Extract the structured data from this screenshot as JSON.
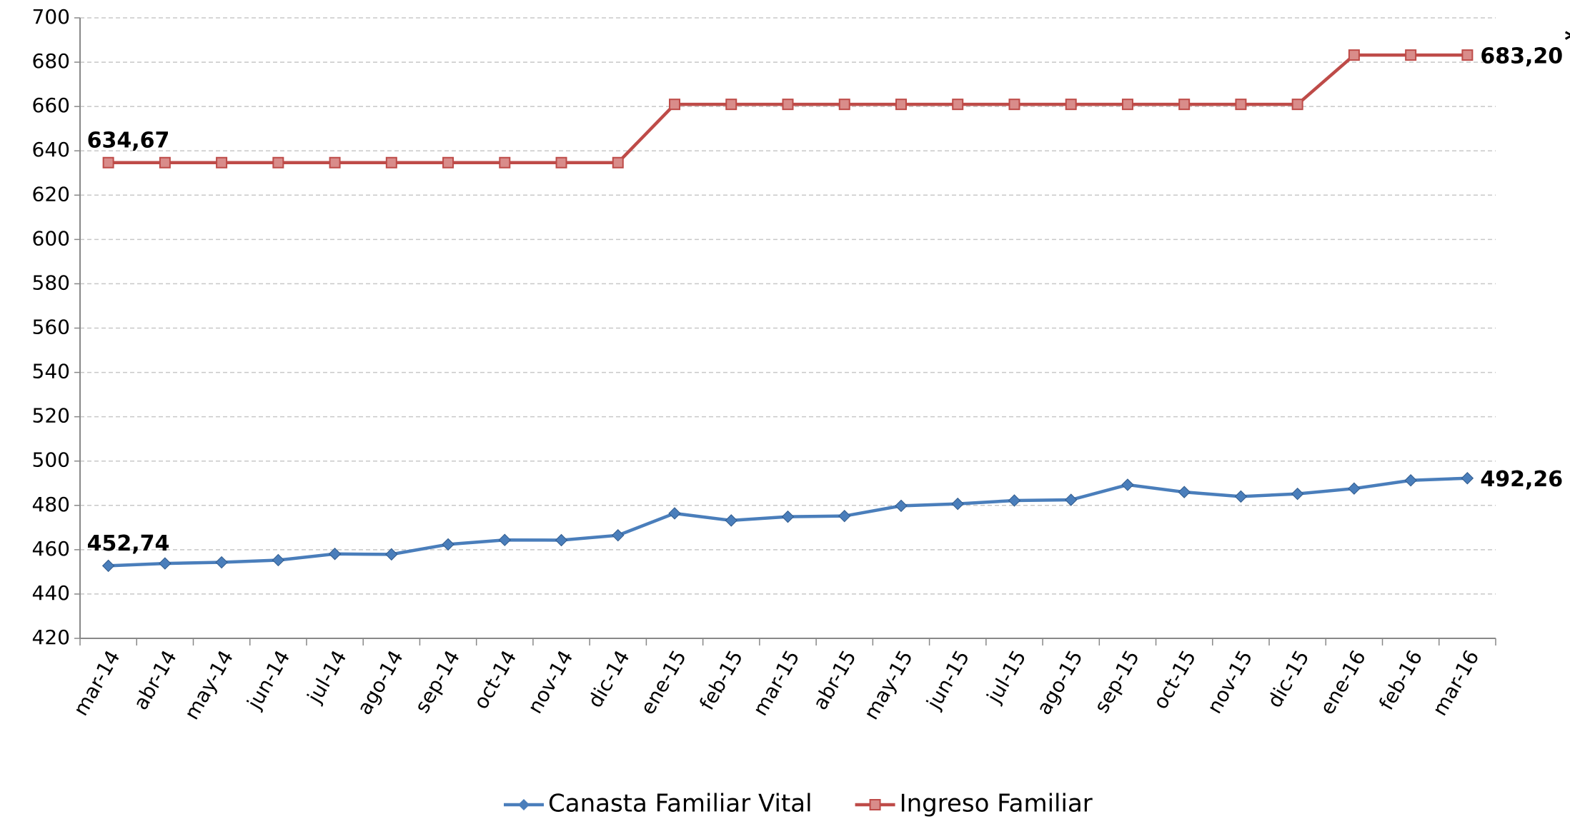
{
  "chart_data": {
    "type": "line",
    "categories": [
      "mar-14",
      "abr-14",
      "may-14",
      "jun-14",
      "jul-14",
      "ago-14",
      "sep-14",
      "oct-14",
      "nov-14",
      "dic-14",
      "ene-15",
      "feb-15",
      "mar-15",
      "abr-15",
      "may-15",
      "jun-15",
      "jul-15",
      "ago-15",
      "sep-15",
      "oct-15",
      "nov-15",
      "dic-15",
      "ene-16",
      "feb-16",
      "mar-16"
    ],
    "series": [
      {
        "name": "Canasta Familiar Vital",
        "color": "#4a7ebb",
        "marker": "diamond",
        "values": [
          452.74,
          453.8,
          454.3,
          455.3,
          458.1,
          457.9,
          462.4,
          464.4,
          464.3,
          466.5,
          476.4,
          473.2,
          474.9,
          475.2,
          479.8,
          480.7,
          482.2,
          482.5,
          489.3,
          486.0,
          484.0,
          485.2,
          487.6,
          491.3,
          492.26
        ],
        "value_labels": [
          "452,74",
          null,
          null,
          null,
          null,
          null,
          null,
          null,
          null,
          null,
          null,
          null,
          null,
          null,
          null,
          null,
          null,
          null,
          null,
          null,
          null,
          null,
          null,
          null,
          "492,26"
        ]
      },
      {
        "name": "Ingreso Familiar",
        "color": "#be4b48",
        "marker": "square",
        "values": [
          634.67,
          634.67,
          634.67,
          634.67,
          634.67,
          634.67,
          634.67,
          634.67,
          634.67,
          634.67,
          660.96,
          660.96,
          660.96,
          660.96,
          660.96,
          660.96,
          660.96,
          660.96,
          660.96,
          660.96,
          660.96,
          660.96,
          683.2,
          683.2,
          683.2
        ],
        "value_labels": [
          "634,67",
          null,
          null,
          null,
          null,
          null,
          null,
          null,
          null,
          null,
          null,
          null,
          null,
          null,
          null,
          null,
          null,
          null,
          null,
          null,
          null,
          null,
          null,
          null,
          "683,20"
        ]
      }
    ],
    "annotation": "*",
    "ylim": [
      420,
      700
    ],
    "yticks": [
      420,
      440,
      460,
      480,
      500,
      520,
      540,
      560,
      580,
      600,
      620,
      640,
      660,
      680,
      700
    ],
    "grid": true,
    "legend": "bottom"
  }
}
